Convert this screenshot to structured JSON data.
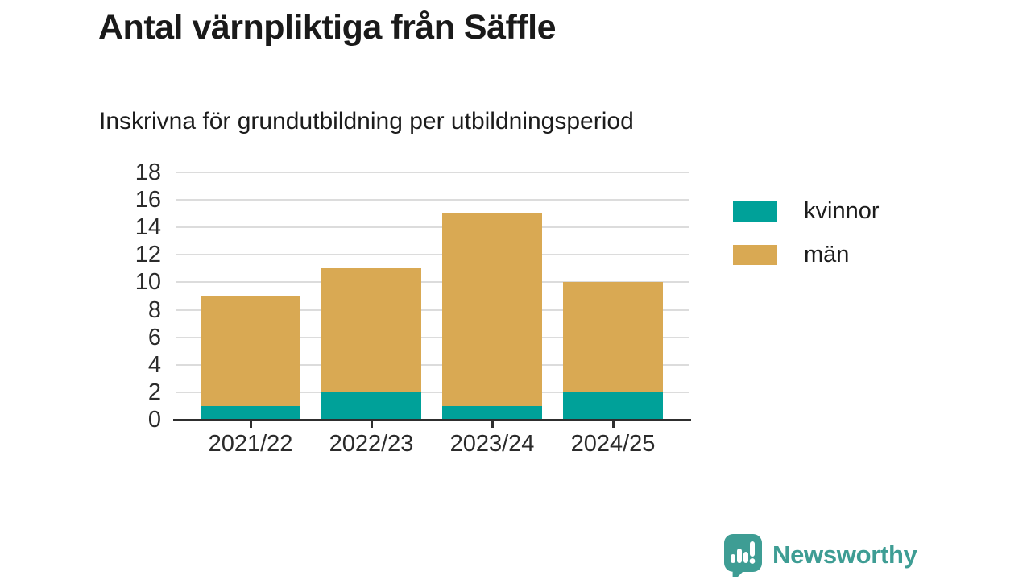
{
  "header": {
    "title": "Antal värnpliktiga från Säffle",
    "subtitle": "Inskrivna för grundutbildning per utbildningsperiod"
  },
  "chart_data": {
    "type": "bar",
    "stacked": true,
    "title": "Antal värnpliktiga från Säffle",
    "subtitle": "Inskrivna för grundutbildning per utbildningsperiod",
    "categories": [
      "2021/22",
      "2022/23",
      "2023/24",
      "2024/25"
    ],
    "series": [
      {
        "name": "kvinnor",
        "color": "#00a199",
        "values": [
          1,
          2,
          1,
          2
        ]
      },
      {
        "name": "män",
        "color": "#d9a953",
        "values": [
          8,
          9,
          14,
          8
        ]
      }
    ],
    "stack_totals": [
      9,
      11,
      15,
      10
    ],
    "ylim": [
      0,
      18
    ],
    "yticks": [
      0,
      2,
      4,
      6,
      8,
      10,
      12,
      14,
      16,
      18
    ],
    "xlabel": "",
    "ylabel": "",
    "grid": "horizontal",
    "legend_position": "right"
  },
  "colors": {
    "kvinnor": "#00a199",
    "man": "#d9a953",
    "gridline": "#dcdcdc",
    "axis": "#2e2e2e",
    "brand_teal": "#3e9d94",
    "title_text": "#1a1a1a"
  },
  "footer": {
    "brand": "Newsworthy"
  }
}
